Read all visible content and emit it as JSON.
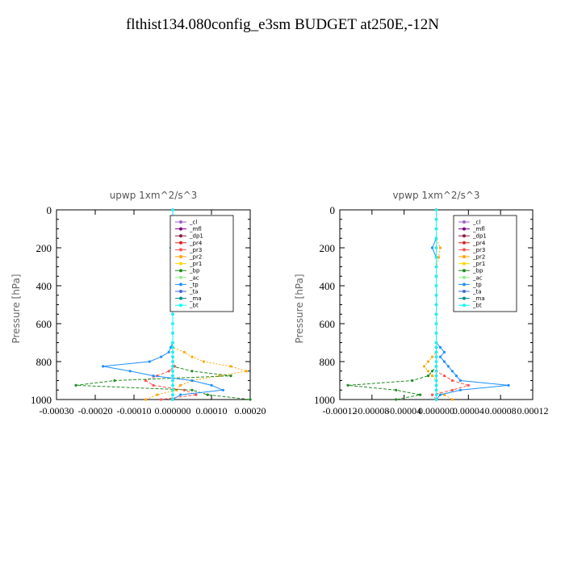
{
  "title": "flthist134.080config_e3sm  BUDGET at250E,-12N",
  "legend": [
    "_cl",
    "_mfl",
    "_dp1",
    "_pr4",
    "_pr3",
    "_pr2",
    "_pr1",
    "_bp",
    "_ac",
    "_tp",
    "_ta",
    "_ma",
    "_bt"
  ],
  "series_colors": [
    "#a060c0",
    "#800080",
    "#8b1a40",
    "#e02020",
    "#ff5050",
    "#ffa500",
    "#ffd700",
    "#228b22",
    "#90ee90",
    "#1e90ff",
    "#4169e1",
    "#008b8b",
    "#00ffff"
  ],
  "chart_data": [
    {
      "type": "line",
      "title": "upwp   1xm^2/s^3",
      "ylabel": "Pressure [hPa]",
      "ylim": [
        1000,
        0
      ],
      "yticks": [
        "0",
        "200",
        "400",
        "600",
        "800",
        "1000"
      ],
      "xlim": [
        -0.0003,
        0.0002
      ],
      "xticks": [
        "-0.00030",
        "-0.00020",
        "-0.00010",
        "0.000000",
        "0.00010",
        "0.00020"
      ],
      "legend_position": "top-right",
      "levels": [
        0,
        50,
        100,
        150,
        200,
        250,
        300,
        350,
        400,
        450,
        500,
        550,
        600,
        650,
        700,
        725,
        750,
        775,
        800,
        825,
        850,
        875,
        900,
        925,
        950,
        975,
        1000
      ],
      "series": [
        {
          "name": "_cl",
          "values": [
            0,
            0,
            0,
            0,
            0,
            0,
            0,
            0,
            0,
            0,
            0,
            0,
            0,
            0,
            0,
            0,
            0,
            0,
            0,
            0,
            0,
            0,
            0,
            0,
            0,
            0,
            0
          ]
        },
        {
          "name": "_mfl",
          "values": [
            0,
            0,
            0,
            0,
            0,
            0,
            0,
            0,
            0,
            0,
            0,
            0,
            0,
            0,
            0,
            0,
            0,
            0,
            0,
            0,
            0,
            0,
            0,
            0,
            0,
            0,
            0
          ]
        },
        {
          "name": "_dp1",
          "values": [
            0,
            0,
            0,
            0,
            0,
            0,
            0,
            0,
            0,
            0,
            0,
            0,
            0,
            0,
            0,
            0,
            0,
            0,
            0,
            0,
            0,
            0,
            0,
            0,
            0,
            0,
            0
          ]
        },
        {
          "name": "_pr4",
          "values": [
            0,
            0,
            0,
            0,
            0,
            0,
            0,
            0,
            0,
            0,
            0,
            0,
            0,
            0,
            0,
            0,
            0,
            0,
            0,
            0,
            0,
            0,
            0,
            0,
            0,
            0,
            0
          ]
        },
        {
          "name": "_pr3",
          "values": [
            0,
            0,
            0,
            0,
            0,
            0,
            0,
            0,
            0,
            0,
            0,
            0,
            0,
            0,
            0,
            0,
            0,
            0,
            0,
            5e-06,
            -1e-05,
            -4e-05,
            -7e-05,
            -5e-05,
            3e-05,
            6e-05,
            -3e-05
          ]
        },
        {
          "name": "_pr2",
          "values": [
            0,
            0,
            0,
            0,
            0,
            0,
            0,
            0,
            0,
            0,
            0,
            0,
            0,
            0,
            0,
            0,
            3e-05,
            5e-05,
            8e-05,
            0.00015,
            0.00019,
            0.00012,
            5e-05,
            2e-05,
            1e-05,
            -4e-05,
            -7e-05
          ]
        },
        {
          "name": "_pr1",
          "values": [
            0,
            0,
            0,
            0,
            0,
            0,
            0,
            0,
            0,
            0,
            0,
            0,
            0,
            0,
            0,
            0,
            0,
            0,
            0,
            0,
            0,
            0,
            0,
            0,
            0,
            0,
            0
          ]
        },
        {
          "name": "_bp",
          "values": [
            0,
            0,
            0,
            0,
            0,
            0,
            0,
            0,
            0,
            0,
            0,
            0,
            0,
            0,
            0,
            0,
            0,
            0,
            0,
            0,
            5e-05,
            0.00015,
            -0.00015,
            -0.00025,
            5e-05,
            9e-05,
            0.0002
          ]
        },
        {
          "name": "_ac",
          "values": [
            0,
            0,
            0,
            0,
            0,
            0,
            0,
            0,
            0,
            0,
            0,
            0,
            0,
            0,
            0,
            0,
            0,
            0,
            0,
            0,
            0,
            0,
            0,
            0,
            0,
            0,
            0
          ]
        },
        {
          "name": "_tp",
          "values": [
            0,
            0,
            0,
            0,
            -5e-06,
            0,
            0,
            0,
            0,
            0,
            0,
            0,
            0,
            0,
            0,
            -5e-06,
            -1e-05,
            -3e-05,
            -6e-05,
            -0.00018,
            -0.00011,
            -5e-05,
            5e-05,
            0.0001,
            0.00013,
            2e-05,
            0
          ]
        },
        {
          "name": "_ta",
          "values": [
            0,
            0,
            0,
            0,
            0,
            0,
            0,
            0,
            0,
            0,
            0,
            0,
            0,
            0,
            0,
            0,
            0,
            0,
            0,
            0,
            0,
            0,
            0,
            0,
            0,
            0,
            0
          ]
        },
        {
          "name": "_ma",
          "values": [
            0,
            0,
            0,
            0,
            0,
            0,
            0,
            0,
            0,
            0,
            0,
            0,
            0,
            0,
            0,
            0,
            0,
            0,
            0,
            0,
            0,
            0,
            0,
            0,
            0,
            0,
            0
          ]
        },
        {
          "name": "_bt",
          "values": [
            0,
            0,
            0,
            0,
            0,
            0,
            0,
            0,
            0,
            0,
            0,
            0,
            0,
            0,
            0,
            0,
            0,
            0,
            0,
            0,
            0,
            0,
            0,
            0,
            0,
            0,
            0
          ]
        }
      ]
    },
    {
      "type": "line",
      "title": "vpwp   1xm^2/s^3",
      "ylabel": "Pressure [hPa]",
      "ylim": [
        1000,
        0
      ],
      "yticks": [
        "0",
        "200",
        "400",
        "600",
        "800",
        "1000"
      ],
      "xlim": [
        -0.00012,
        0.00012
      ],
      "xticks": [
        "-0.00012",
        "-0.00008",
        "-0.00004",
        "0.000000",
        "0.00004",
        "0.00008",
        "0.00012"
      ],
      "legend_position": "top-right",
      "levels": [
        0,
        50,
        100,
        150,
        200,
        250,
        300,
        350,
        400,
        450,
        500,
        550,
        600,
        650,
        700,
        725,
        750,
        775,
        800,
        825,
        850,
        875,
        900,
        925,
        950,
        975,
        1000
      ],
      "series": [
        {
          "name": "_cl",
          "values": [
            0,
            0,
            0,
            0,
            0,
            0,
            0,
            0,
            0,
            0,
            0,
            0,
            0,
            0,
            0,
            0,
            0,
            0,
            0,
            0,
            0,
            0,
            0,
            0,
            0,
            0,
            0
          ]
        },
        {
          "name": "_mfl",
          "values": [
            0,
            0,
            0,
            0,
            0,
            0,
            0,
            0,
            0,
            0,
            0,
            0,
            0,
            0,
            0,
            0,
            0,
            0,
            0,
            0,
            0,
            0,
            0,
            0,
            0,
            0,
            0
          ]
        },
        {
          "name": "_dp1",
          "values": [
            0,
            0,
            0,
            0,
            0,
            0,
            0,
            0,
            0,
            0,
            0,
            0,
            0,
            0,
            0,
            0,
            0,
            0,
            0,
            0,
            0,
            0,
            0,
            0,
            0,
            0,
            0
          ]
        },
        {
          "name": "_pr4",
          "values": [
            0,
            0,
            0,
            0,
            0,
            0,
            0,
            0,
            0,
            0,
            0,
            0,
            0,
            0,
            0,
            0,
            0,
            0,
            0,
            0,
            0,
            0,
            0,
            0,
            0,
            0,
            0
          ]
        },
        {
          "name": "_pr3",
          "values": [
            0,
            0,
            0,
            0,
            0,
            0,
            0,
            0,
            0,
            0,
            0,
            0,
            0,
            0,
            0,
            0,
            0,
            0,
            0,
            0,
            0,
            1e-05,
            2e-05,
            4e-05,
            2e-05,
            -5e-06,
            0
          ]
        },
        {
          "name": "_pr2",
          "values": [
            0,
            0,
            0,
            0,
            5e-06,
            3e-06,
            0,
            0,
            0,
            0,
            0,
            0,
            0,
            0,
            0,
            0,
            0,
            -5e-06,
            -1e-05,
            -1.5e-05,
            -1e-05,
            -5e-06,
            0,
            0,
            0,
            1e-05,
            2e-05
          ]
        },
        {
          "name": "_pr1",
          "values": [
            0,
            0,
            0,
            0,
            0,
            0,
            0,
            0,
            0,
            0,
            0,
            0,
            0,
            0,
            0,
            0,
            0,
            0,
            0,
            0,
            0,
            0,
            0,
            0,
            0,
            0,
            0
          ]
        },
        {
          "name": "_bp",
          "values": [
            0,
            0,
            0,
            0,
            0,
            0,
            0,
            0,
            0,
            0,
            0,
            0,
            0,
            0,
            0,
            0,
            0,
            0,
            0,
            0,
            -5e-06,
            -1e-05,
            -3e-05,
            -0.00011,
            -5e-05,
            -2e-05,
            -5e-05
          ]
        },
        {
          "name": "_ac",
          "values": [
            0,
            0,
            0,
            0,
            0,
            0,
            0,
            0,
            0,
            0,
            0,
            0,
            0,
            0,
            0,
            0,
            0,
            0,
            0,
            0,
            0,
            0,
            0,
            0,
            0,
            0,
            0
          ]
        },
        {
          "name": "_tp",
          "values": [
            0,
            0,
            0,
            0,
            -5e-06,
            0,
            0,
            0,
            0,
            0,
            0,
            0,
            0,
            0,
            0,
            5e-06,
            1e-05,
            5e-06,
            1e-05,
            1.5e-05,
            2e-05,
            2.5e-05,
            3e-05,
            9e-05,
            3e-05,
            5e-06,
            0
          ]
        },
        {
          "name": "_ta",
          "values": [
            0,
            0,
            0,
            0,
            0,
            0,
            0,
            0,
            0,
            0,
            0,
            0,
            0,
            0,
            0,
            0,
            0,
            0,
            0,
            0,
            0,
            0,
            0,
            0,
            0,
            0,
            0
          ]
        },
        {
          "name": "_ma",
          "values": [
            0,
            0,
            0,
            0,
            0,
            0,
            0,
            0,
            0,
            0,
            0,
            0,
            0,
            0,
            0,
            0,
            0,
            0,
            0,
            0,
            0,
            0,
            0,
            0,
            0,
            0,
            0
          ]
        },
        {
          "name": "_bt",
          "values": [
            0,
            0,
            0,
            0,
            0,
            0,
            0,
            0,
            0,
            0,
            0,
            0,
            0,
            0,
            0,
            0,
            0,
            0,
            0,
            0,
            0,
            0,
            0,
            0,
            0,
            0,
            0
          ]
        }
      ]
    }
  ]
}
